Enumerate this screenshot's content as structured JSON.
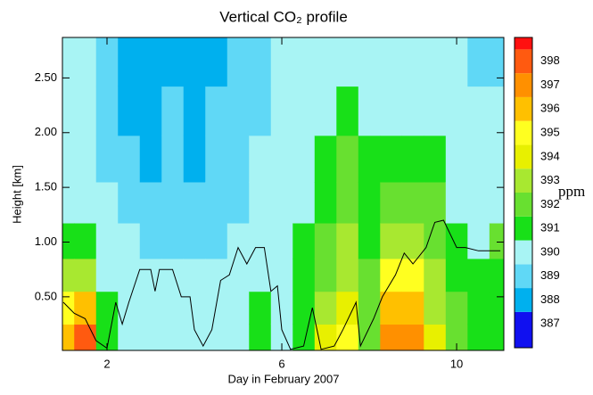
{
  "chart_data": {
    "type": "contour",
    "title": "Vertical CO₂ profile",
    "xlabel": "Day in February 2007",
    "ylabel": "Height [km]",
    "xlim": [
      0.98,
      11.08
    ],
    "ylim": [
      0.01,
      2.87
    ],
    "xticks": [
      2,
      6,
      10
    ],
    "yticks": [
      {
        "value": 0.5,
        "label": "0.50"
      },
      {
        "value": 1.0,
        "label": "1.00"
      },
      {
        "value": 1.5,
        "label": "1.50"
      },
      {
        "value": 2.0,
        "label": "2.00"
      },
      {
        "value": 2.5,
        "label": "2.50"
      }
    ],
    "x": [
      1.0,
      1.5,
      2.0,
      2.5,
      3.0,
      3.5,
      4.0,
      4.5,
      5.0,
      5.5,
      6.0,
      6.5,
      7.0,
      7.5,
      8.0,
      8.5,
      9.0,
      9.5,
      10.0,
      10.5,
      11.0
    ],
    "y": [
      0.1,
      0.4,
      0.7,
      1.0,
      1.35,
      1.75,
      2.2,
      2.65
    ],
    "z": [
      [
        395,
        394,
        392,
        390,
        389,
        389,
        389,
        389
      ],
      [
        397,
        395,
        392,
        390,
        389,
        389,
        389,
        389
      ],
      [
        390,
        390,
        389,
        389,
        389,
        388,
        388,
        388
      ],
      [
        389,
        389,
        389,
        389,
        388,
        388,
        387,
        387
      ],
      [
        389,
        389,
        389,
        388,
        388,
        387,
        387,
        387
      ],
      [
        389,
        389,
        389,
        388,
        388,
        388,
        388,
        387
      ],
      [
        389,
        389,
        389,
        388,
        388,
        387,
        387,
        387
      ],
      [
        389,
        389,
        389,
        388,
        388,
        388,
        388,
        387
      ],
      [
        389,
        389,
        389,
        389,
        388,
        388,
        388,
        388
      ],
      [
        390,
        390,
        389,
        389,
        389,
        389,
        388,
        388
      ],
      [
        389,
        389,
        389,
        389,
        389,
        389,
        389,
        389
      ],
      [
        390,
        390,
        390,
        390,
        389,
        389,
        389,
        389
      ],
      [
        393,
        392,
        391,
        391,
        390,
        390,
        389,
        389
      ],
      [
        394,
        393,
        392,
        392,
        391,
        391,
        390,
        389
      ],
      [
        391,
        391,
        391,
        390,
        390,
        390,
        389,
        389
      ],
      [
        396,
        395,
        394,
        392,
        391,
        390,
        389,
        389
      ],
      [
        396,
        395,
        394,
        392,
        391,
        390,
        389,
        389
      ],
      [
        393,
        392,
        392,
        391,
        391,
        390,
        389,
        389
      ],
      [
        391,
        391,
        390,
        390,
        389,
        389,
        389,
        389
      ],
      [
        390,
        390,
        390,
        389,
        389,
        389,
        389,
        388
      ],
      [
        390,
        390,
        390,
        391,
        389,
        389,
        389,
        388
      ]
    ],
    "line": {
      "color": "#000000",
      "x": [
        1.0,
        1.25,
        1.5,
        1.75,
        2.0,
        2.2,
        2.35,
        2.5,
        2.75,
        3.0,
        3.1,
        3.2,
        3.5,
        3.7,
        3.9,
        4.0,
        4.2,
        4.4,
        4.6,
        4.8,
        5.0,
        5.2,
        5.4,
        5.6,
        5.75,
        5.9,
        6.0,
        6.2,
        6.5,
        6.7,
        6.9,
        7.2,
        7.4,
        7.7,
        7.8,
        8.1,
        8.3,
        8.6,
        8.8,
        9.0,
        9.3,
        9.5,
        9.7,
        10.0,
        10.2,
        10.5,
        11.0
      ],
      "y": [
        0.45,
        0.35,
        0.3,
        0.1,
        0.03,
        0.45,
        0.25,
        0.45,
        0.75,
        0.75,
        0.55,
        0.75,
        0.75,
        0.5,
        0.5,
        0.2,
        0.05,
        0.2,
        0.65,
        0.7,
        0.95,
        0.8,
        0.95,
        0.95,
        0.55,
        0.6,
        0.2,
        0.02,
        0.05,
        0.4,
        0.02,
        0.05,
        0.2,
        0.45,
        0.05,
        0.3,
        0.5,
        0.7,
        0.9,
        0.8,
        0.95,
        1.18,
        1.2,
        0.95,
        0.95,
        0.92,
        0.92
      ]
    },
    "colorbar": {
      "label": "ppm",
      "clim": [
        386,
        399
      ],
      "ticks": [
        387,
        388,
        389,
        390,
        391,
        392,
        393,
        394,
        395,
        396,
        397,
        398
      ],
      "colors": [
        "#1010f0",
        "#00b0ee",
        "#60d8f6",
        "#a8f4f4",
        "#18e018",
        "#68e030",
        "#a8e830",
        "#e8f000",
        "#ffff20",
        "#ffc000",
        "#ff9000",
        "#ff5a10",
        "#ff1010"
      ]
    }
  }
}
